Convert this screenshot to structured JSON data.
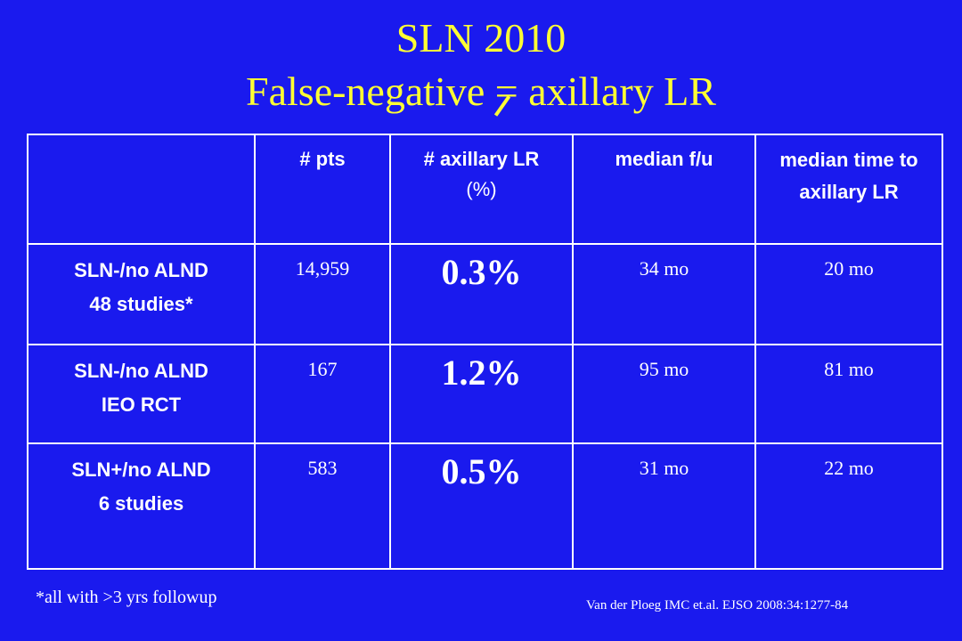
{
  "title": {
    "line1": "SLN 2010",
    "line2_before": "False-negative",
    "line2_symbol": "=",
    "line2_after": "axillary LR",
    "color": "#ffff33"
  },
  "background_color": "#1a1aee",
  "table": {
    "headers": {
      "blank": "",
      "pts": "# pts",
      "axillary_lr": "# axillary LR",
      "axillary_lr_sub": "(%)",
      "median_fu": "median f/u",
      "median_time": "median time to axillary LR"
    },
    "rows": [
      {
        "label_line1": "SLN-/no ALND",
        "label_line2": "48 studies*",
        "pts": "14,959",
        "lr_pct": "0.3%",
        "median_fu": "34 mo",
        "median_time": "20 mo"
      },
      {
        "label_line1": "SLN-/no ALND",
        "label_line2": "IEO RCT",
        "pts": "167",
        "lr_pct": "1.2%",
        "median_fu": "95 mo",
        "median_time": "81 mo"
      },
      {
        "label_line1": "SLN+/no ALND",
        "label_line2": "6 studies",
        "pts": "583",
        "lr_pct": "0.5%",
        "median_fu": "31 mo",
        "median_time": "22 mo"
      }
    ]
  },
  "footnote": "*all with >3 yrs followup",
  "citation": "Van der Ploeg IMC et.al. EJSO 2008:34:1277-84"
}
